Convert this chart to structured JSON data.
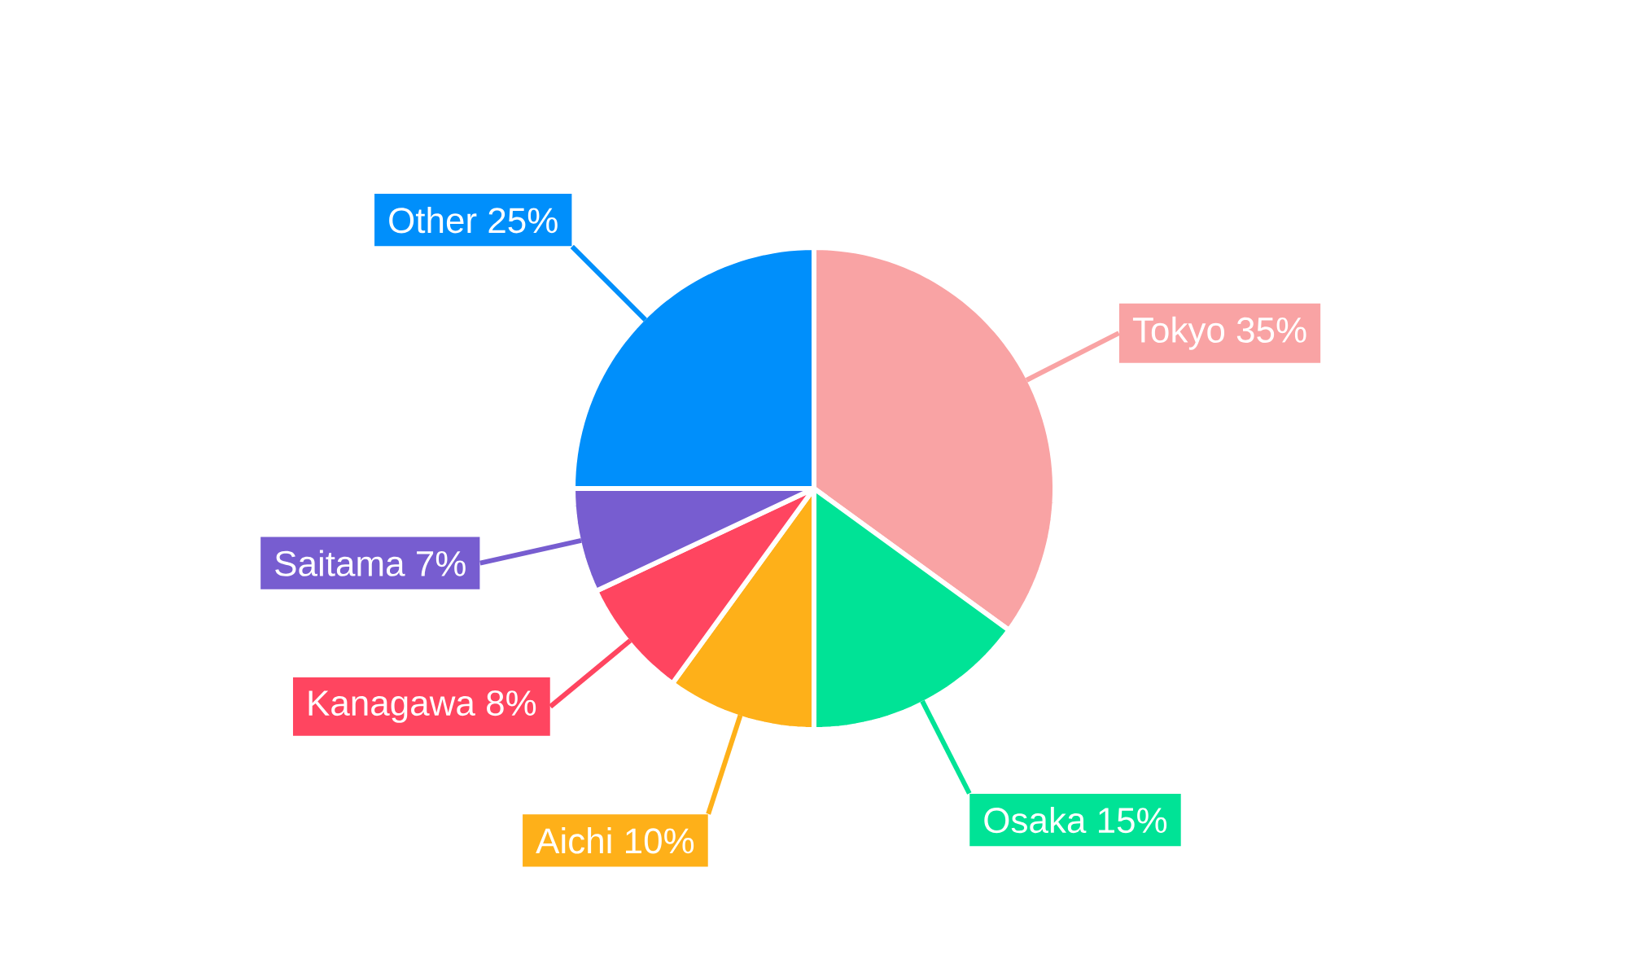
{
  "chart_data": {
    "type": "pie",
    "categories": [
      "Tokyo",
      "Osaka",
      "Aichi",
      "Kanagawa",
      "Saitama",
      "Other"
    ],
    "values": [
      35,
      15,
      10,
      8,
      7,
      25
    ],
    "value_labels": [
      "35%",
      "15%",
      "10%",
      "8%",
      "7%",
      "25%"
    ],
    "colors": [
      "#f9a3a4",
      "#00e396",
      "#feb019",
      "#ff4560",
      "#775dd0",
      "#008ffb"
    ]
  }
}
